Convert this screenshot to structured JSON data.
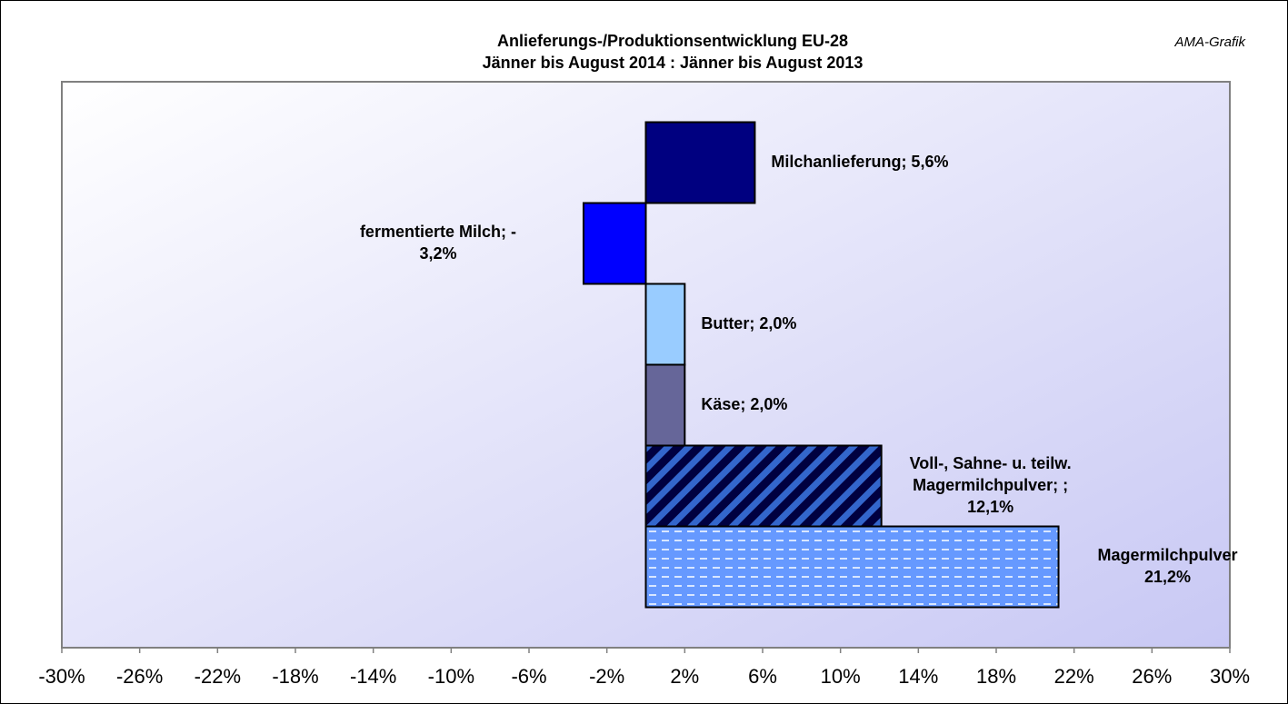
{
  "chart_data": {
    "type": "hbar",
    "title": [
      "Anlieferungs-/Produktionsentwicklung EU-28",
      "Jänner bis August 2014 : Jänner bis August 2013"
    ],
    "source": "AMA-Grafik",
    "values": [
      5.6,
      -3.2,
      2.0,
      2.0,
      12.1,
      21.2
    ],
    "value_labels": [
      [
        "Milchanlieferung; 5,6%"
      ],
      [
        "fermentierte Milch; -",
        "3,2%"
      ],
      [
        "Butter; 2,0%"
      ],
      [
        "Käse; 2,0%"
      ],
      [
        "Voll-, Sahne- u. teilw.",
        "Magermilchpulver; ;",
        "12,1%"
      ],
      [
        "Magermilchpulver",
        "21,2%"
      ]
    ],
    "colors": [
      "#000080",
      "#0000ff",
      "#99ccff",
      "#666699",
      "#3366cc",
      "#6699ff"
    ],
    "hatch": [
      null,
      null,
      null,
      null,
      "diagonal",
      "dashed"
    ],
    "xlim": [
      -30,
      30
    ],
    "xticks": [
      {
        "value": -30,
        "label": "-30%"
      },
      {
        "value": -26,
        "label": "-26%"
      },
      {
        "value": -22,
        "label": "-22%"
      },
      {
        "value": -18,
        "label": "-18%"
      },
      {
        "value": -14,
        "label": "-14%"
      },
      {
        "value": -10,
        "label": "-10%"
      },
      {
        "value": -6,
        "label": "-6%"
      },
      {
        "value": -2,
        "label": "-2%"
      },
      {
        "value": 2,
        "label": "2%"
      },
      {
        "value": 6,
        "label": "6%"
      },
      {
        "value": 10,
        "label": "10%"
      },
      {
        "value": 14,
        "label": "14%"
      },
      {
        "value": 18,
        "label": "18%"
      },
      {
        "value": 22,
        "label": "22%"
      },
      {
        "value": 26,
        "label": "26%"
      },
      {
        "value": 30,
        "label": "30%"
      }
    ]
  }
}
